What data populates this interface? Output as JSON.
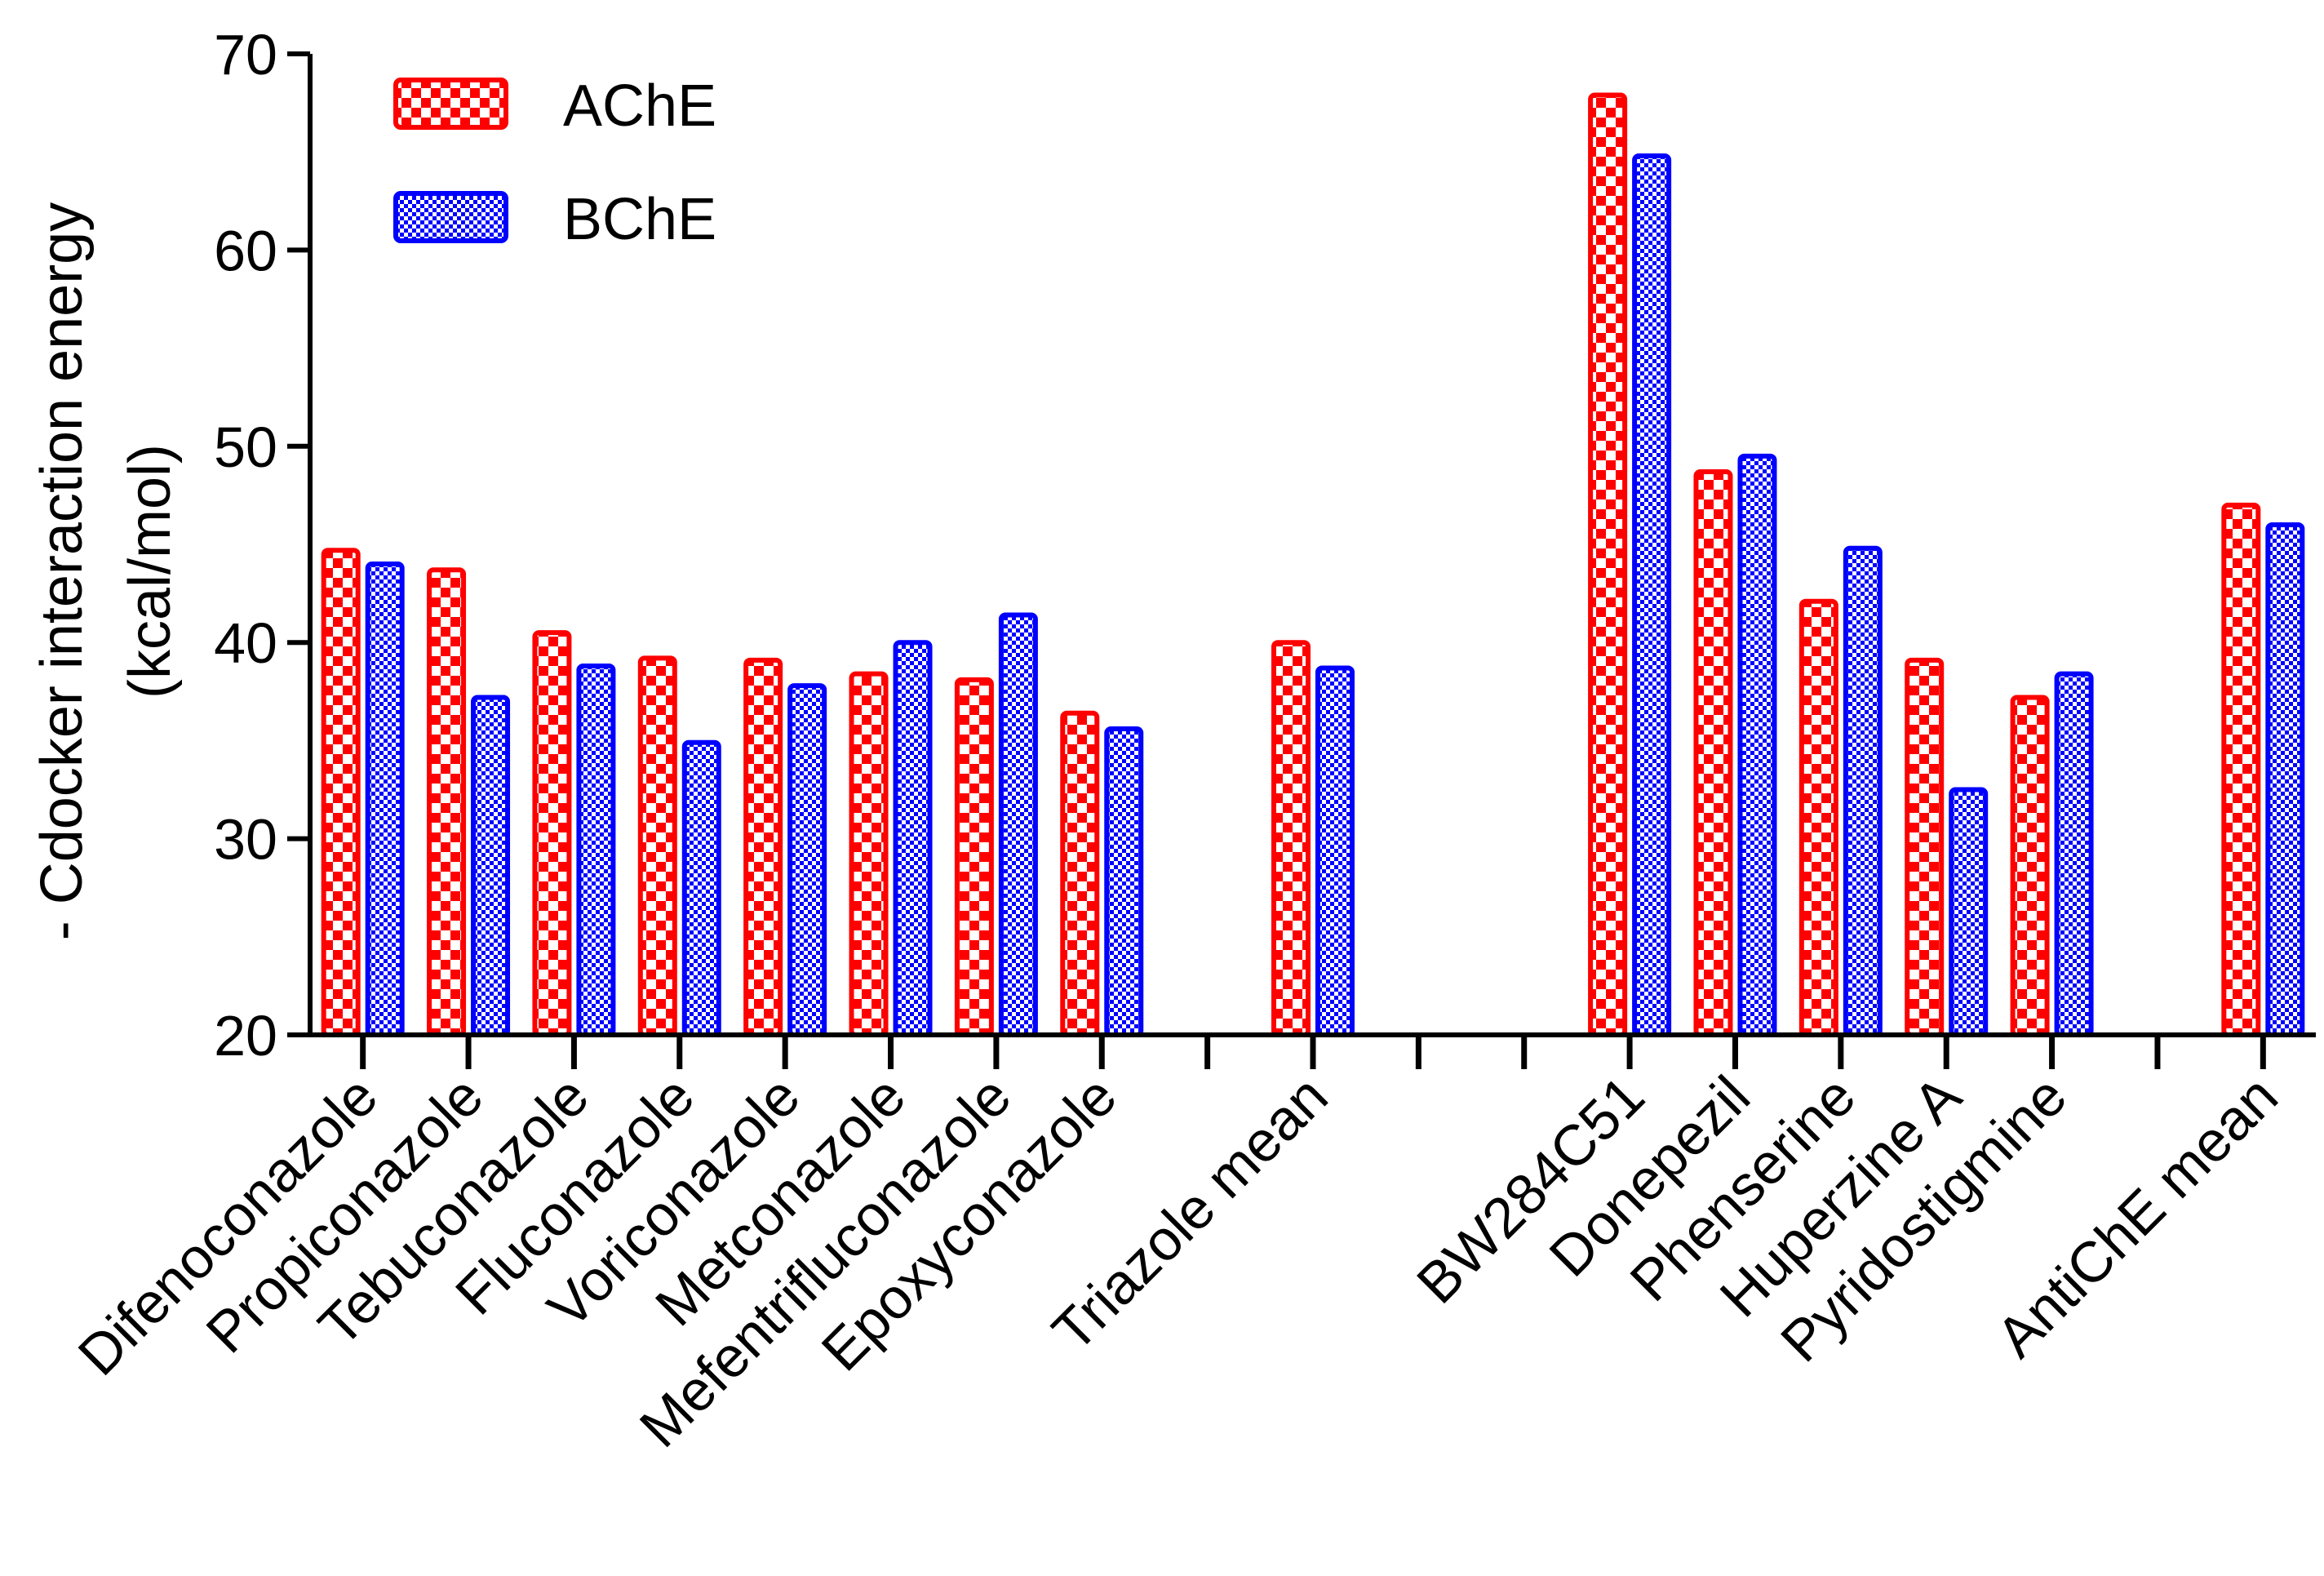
{
  "chart_data": {
    "type": "bar",
    "title": "",
    "xlabel": "",
    "ylabel_lines": [
      "- Cdocker interaction energy",
      "(kcal/mol)"
    ],
    "ylim": [
      20,
      70
    ],
    "yticks": [
      20,
      30,
      40,
      50,
      60,
      70
    ],
    "yticks_labels": [
      "20",
      "30",
      "40",
      "50",
      "60",
      "70"
    ],
    "legend_position": "top-left",
    "slot_count": 19,
    "categories": [
      {
        "slot": 0,
        "label": "Difenoconazole"
      },
      {
        "slot": 1,
        "label": "Propiconazole"
      },
      {
        "slot": 2,
        "label": "Tebuconazole"
      },
      {
        "slot": 3,
        "label": "Fluconazole"
      },
      {
        "slot": 4,
        "label": "Voriconazole"
      },
      {
        "slot": 5,
        "label": "Metconazole"
      },
      {
        "slot": 6,
        "label": "Mefentrifluconazole"
      },
      {
        "slot": 7,
        "label": "Epoxyconazole"
      },
      {
        "slot": 9,
        "label": "Triazole mean"
      },
      {
        "slot": 12,
        "label": "BW284C51"
      },
      {
        "slot": 13,
        "label": "Donepezil"
      },
      {
        "slot": 14,
        "label": "Phenserine"
      },
      {
        "slot": 15,
        "label": "Huperzine A"
      },
      {
        "slot": 16,
        "label": "Pyridostigmine"
      },
      {
        "slot": 18,
        "label": "AntiChE mean"
      }
    ],
    "series": [
      {
        "name": "AChE",
        "color": "#ff0000",
        "values": [
          44.7,
          43.7,
          40.5,
          39.2,
          39.1,
          38.4,
          38.1,
          36.4,
          40.0,
          67.9,
          48.7,
          42.1,
          39.1,
          37.2,
          47.0
        ]
      },
      {
        "name": "BChE",
        "color": "#0000ff",
        "values": [
          44.0,
          37.2,
          38.8,
          34.9,
          37.8,
          40.0,
          41.4,
          35.6,
          38.7,
          64.8,
          49.5,
          44.8,
          32.5,
          38.4,
          46.0
        ]
      }
    ]
  }
}
